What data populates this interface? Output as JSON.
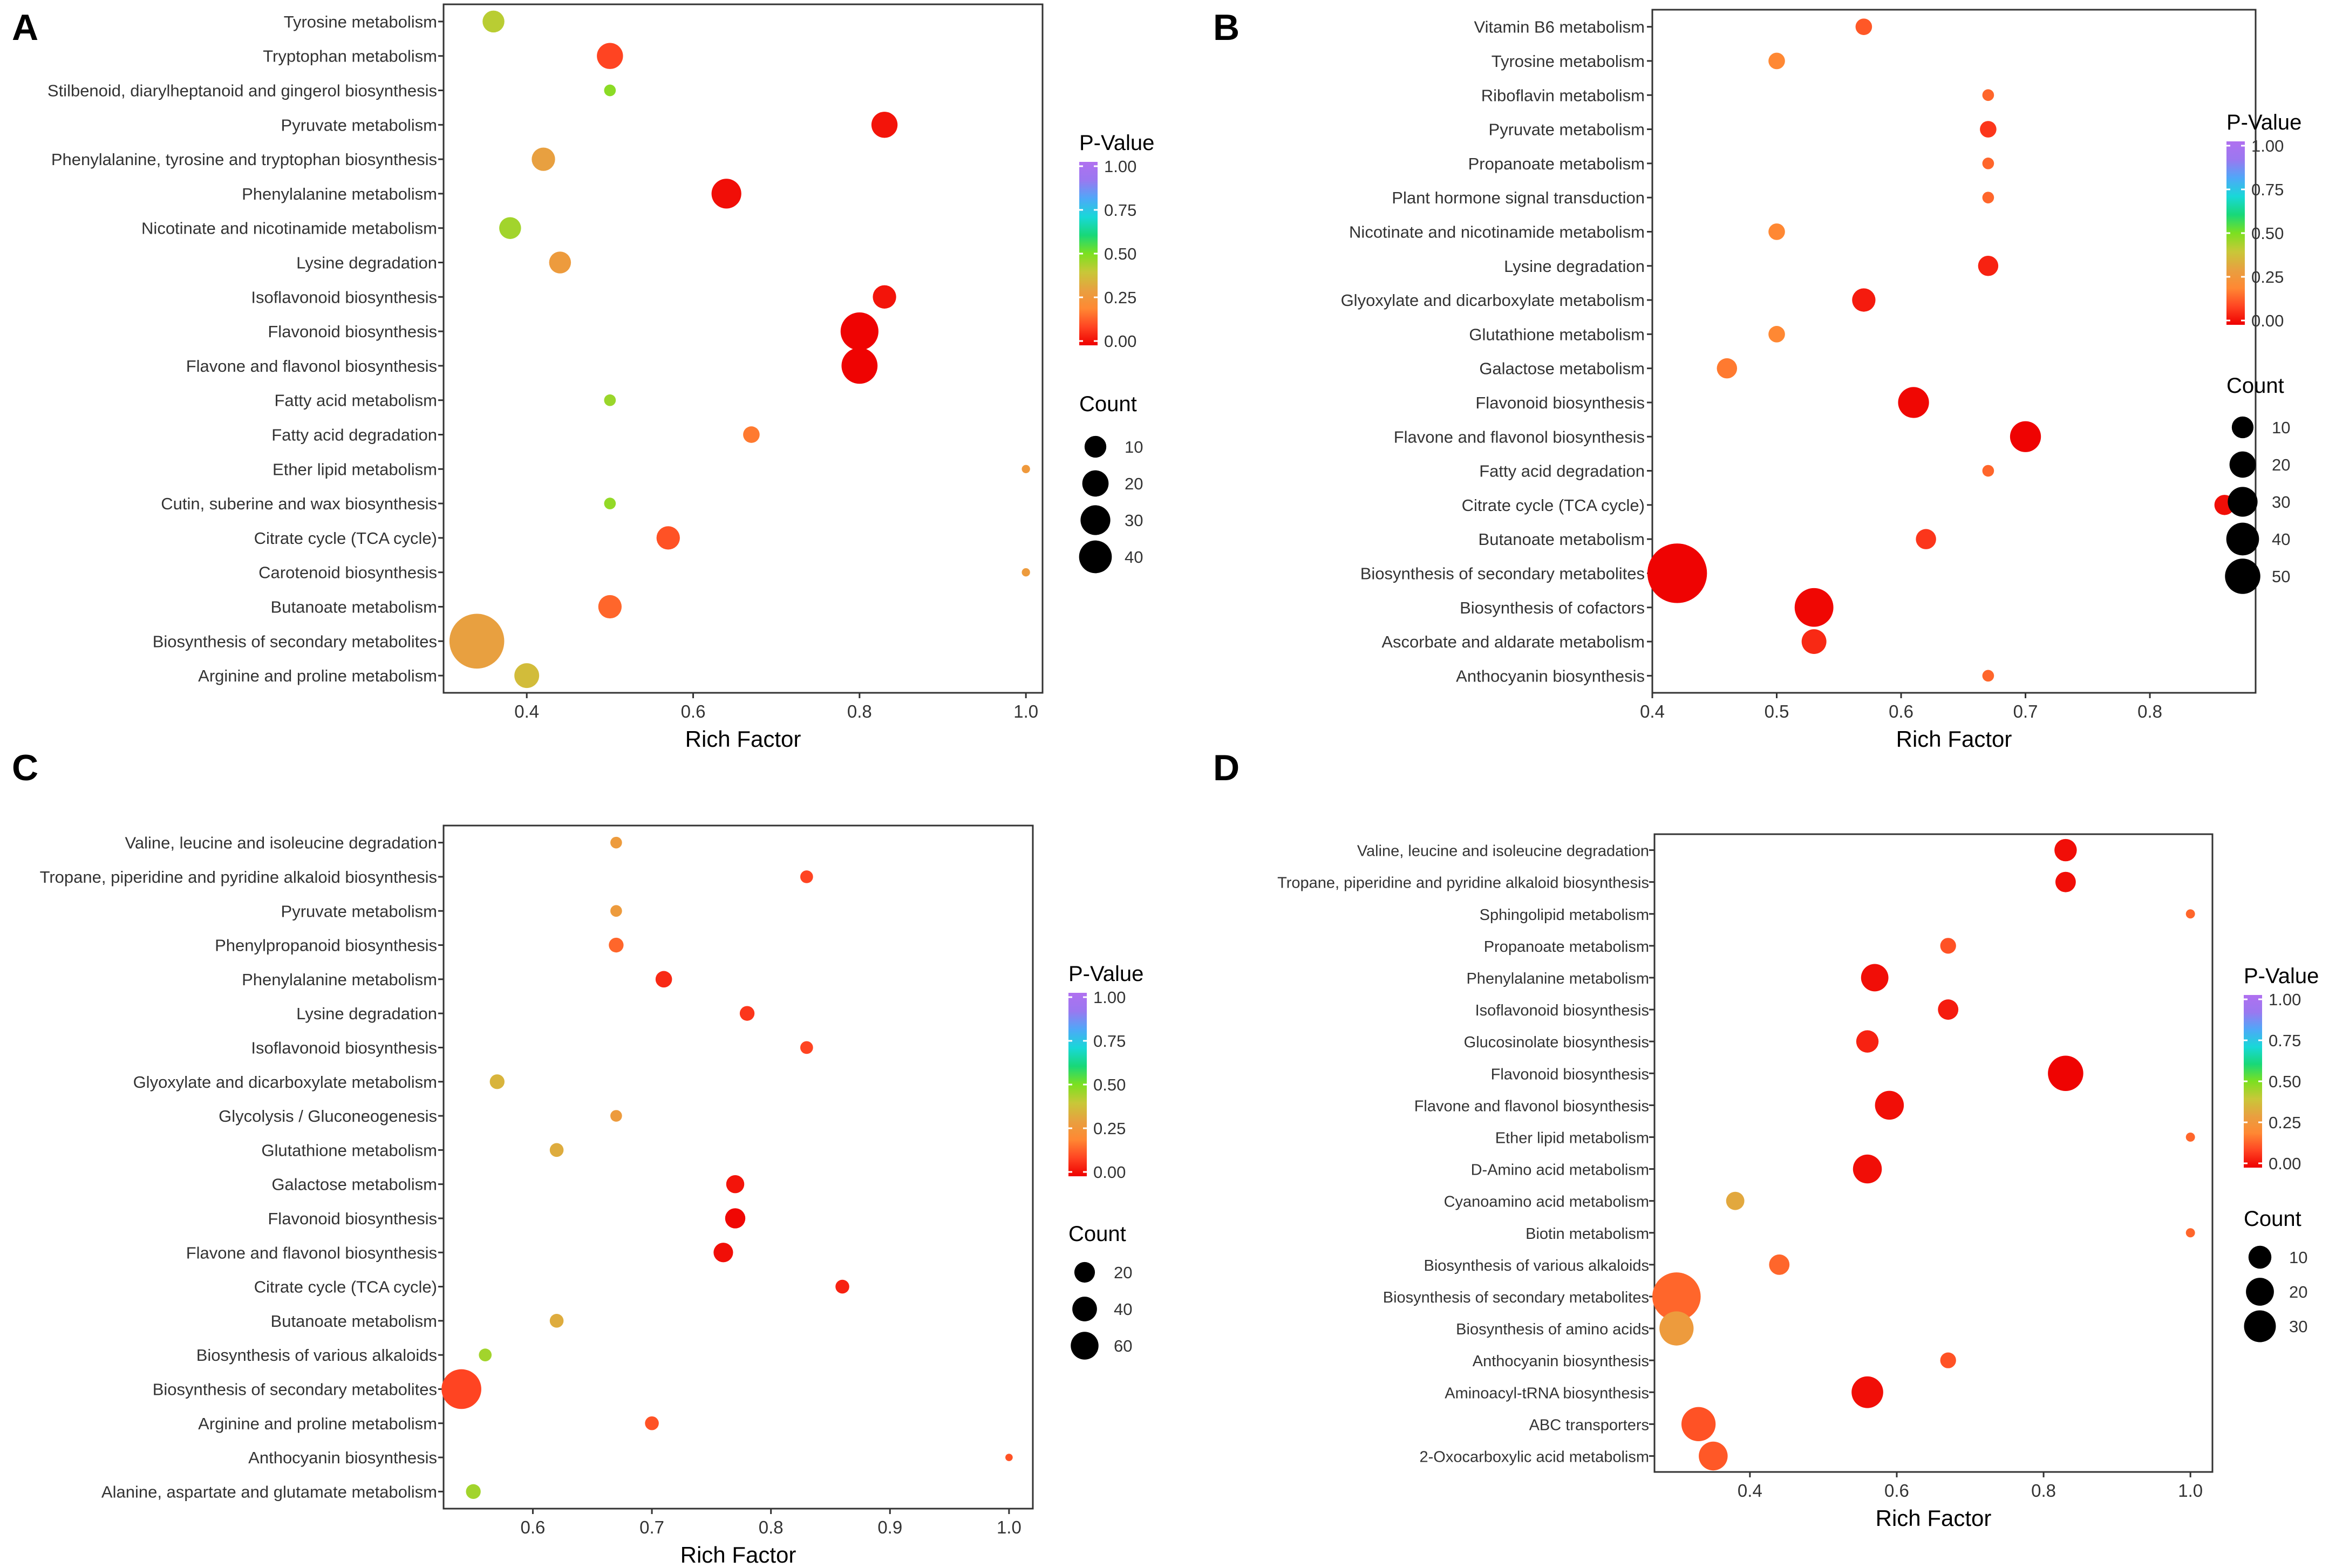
{
  "chart_data": [
    {
      "panel": "A",
      "type": "scatter",
      "xlabel": "Rich Factor",
      "xlim": [
        0.3,
        1.02
      ],
      "xticks": [
        "0.4",
        "0.6",
        "0.8",
        "1.0"
      ],
      "xtick_values": [
        0.4,
        0.6,
        0.8,
        1.0
      ],
      "legend_color_title": "P-Value",
      "color_ticks": [
        "1.00",
        "0.75",
        "0.50",
        "0.25",
        "0.00"
      ],
      "legend_size_title": "Count",
      "size_ticks": [
        "10",
        "20",
        "30",
        "40"
      ],
      "size_values": [
        10,
        20,
        30,
        40
      ],
      "points": [
        {
          "pathway": "Tyrosine metabolism",
          "rich_factor": 0.36,
          "p_value": 0.42,
          "count": 7
        },
        {
          "pathway": "Tryptophan metabolism",
          "rich_factor": 0.5,
          "p_value": 0.1,
          "count": 10
        },
        {
          "pathway": "Stilbenoid, diarylheptanoid and gingerol biosynthesis",
          "rich_factor": 0.5,
          "p_value": 0.48,
          "count": 2
        },
        {
          "pathway": "Pyruvate metabolism",
          "rich_factor": 0.83,
          "p_value": 0.03,
          "count": 10
        },
        {
          "pathway": "Phenylalanine, tyrosine and tryptophan biosynthesis",
          "rich_factor": 0.42,
          "p_value": 0.3,
          "count": 8
        },
        {
          "pathway": "Phenylalanine metabolism",
          "rich_factor": 0.64,
          "p_value": 0.02,
          "count": 13
        },
        {
          "pathway": "Nicotinate and nicotinamide metabolism",
          "rich_factor": 0.38,
          "p_value": 0.45,
          "count": 7
        },
        {
          "pathway": "Lysine degradation",
          "rich_factor": 0.44,
          "p_value": 0.28,
          "count": 7
        },
        {
          "pathway": "Isoflavonoid biosynthesis",
          "rich_factor": 0.83,
          "p_value": 0.03,
          "count": 8
        },
        {
          "pathway": "Flavonoid biosynthesis",
          "rich_factor": 0.8,
          "p_value": 0.005,
          "count": 21
        },
        {
          "pathway": "Flavone and flavonol biosynthesis",
          "rich_factor": 0.8,
          "p_value": 0.005,
          "count": 19
        },
        {
          "pathway": "Fatty acid metabolism",
          "rich_factor": 0.5,
          "p_value": 0.46,
          "count": 2
        },
        {
          "pathway": "Fatty acid degradation",
          "rich_factor": 0.67,
          "p_value": 0.18,
          "count": 4
        },
        {
          "pathway": "Ether lipid metabolism",
          "rich_factor": 1.0,
          "p_value": 0.27,
          "count": 1
        },
        {
          "pathway": "Cutin, suberine and wax biosynthesis",
          "rich_factor": 0.5,
          "p_value": 0.47,
          "count": 2
        },
        {
          "pathway": "Citrate cycle (TCA cycle)",
          "rich_factor": 0.57,
          "p_value": 0.12,
          "count": 8
        },
        {
          "pathway": "Carotenoid biosynthesis",
          "rich_factor": 1.0,
          "p_value": 0.28,
          "count": 1
        },
        {
          "pathway": "Butanoate metabolism",
          "rich_factor": 0.5,
          "p_value": 0.15,
          "count": 8
        },
        {
          "pathway": "Biosynthesis of secondary metabolites",
          "rich_factor": 0.34,
          "p_value": 0.3,
          "count": 44
        },
        {
          "pathway": "Arginine and proline metabolism",
          "rich_factor": 0.4,
          "p_value": 0.37,
          "count": 9
        }
      ]
    },
    {
      "panel": "B",
      "type": "scatter",
      "xlabel": "Rich Factor",
      "xlim": [
        0.4,
        0.885
      ],
      "xticks": [
        "0.4",
        "0.5",
        "0.6",
        "0.7",
        "0.8"
      ],
      "xtick_values": [
        0.4,
        0.5,
        0.6,
        0.7,
        0.8
      ],
      "legend_color_title": "P-Value",
      "color_ticks": [
        "1.00",
        "0.75",
        "0.50",
        "0.25",
        "0.00"
      ],
      "legend_size_title": "Count",
      "size_ticks": [
        "10",
        "20",
        "30",
        "40",
        "50"
      ],
      "size_values": [
        10,
        20,
        30,
        40,
        50
      ],
      "points": [
        {
          "pathway": "Vitamin B6 metabolism",
          "rich_factor": 0.57,
          "p_value": 0.13,
          "count": 4
        },
        {
          "pathway": "Tyrosine metabolism",
          "rich_factor": 0.5,
          "p_value": 0.2,
          "count": 4
        },
        {
          "pathway": "Riboflavin metabolism",
          "rich_factor": 0.67,
          "p_value": 0.15,
          "count": 2
        },
        {
          "pathway": "Pyruvate metabolism",
          "rich_factor": 0.67,
          "p_value": 0.08,
          "count": 4
        },
        {
          "pathway": "Propanoate metabolism",
          "rich_factor": 0.67,
          "p_value": 0.15,
          "count": 2
        },
        {
          "pathway": "Plant hormone signal transduction",
          "rich_factor": 0.67,
          "p_value": 0.15,
          "count": 2
        },
        {
          "pathway": "Nicotinate and nicotinamide metabolism",
          "rich_factor": 0.5,
          "p_value": 0.2,
          "count": 4
        },
        {
          "pathway": "Lysine degradation",
          "rich_factor": 0.67,
          "p_value": 0.05,
          "count": 6
        },
        {
          "pathway": "Glyoxylate and dicarboxylate metabolism",
          "rich_factor": 0.57,
          "p_value": 0.04,
          "count": 8
        },
        {
          "pathway": "Glutathione metabolism",
          "rich_factor": 0.5,
          "p_value": 0.2,
          "count": 4
        },
        {
          "pathway": "Galactose metabolism",
          "rich_factor": 0.46,
          "p_value": 0.18,
          "count": 6
        },
        {
          "pathway": "Flavonoid biosynthesis",
          "rich_factor": 0.61,
          "p_value": 0.01,
          "count": 14
        },
        {
          "pathway": "Flavone and flavonol biosynthesis",
          "rich_factor": 0.7,
          "p_value": 0.005,
          "count": 14
        },
        {
          "pathway": "Fatty acid degradation",
          "rich_factor": 0.67,
          "p_value": 0.15,
          "count": 2
        },
        {
          "pathway": "Citrate cycle (TCA cycle)",
          "rich_factor": 0.86,
          "p_value": 0.02,
          "count": 6
        },
        {
          "pathway": "Butanoate metabolism",
          "rich_factor": 0.62,
          "p_value": 0.08,
          "count": 6
        },
        {
          "pathway": "Biosynthesis of secondary metabolites",
          "rich_factor": 0.42,
          "p_value": 0.005,
          "count": 52
        },
        {
          "pathway": "Biosynthesis of cofactors",
          "rich_factor": 0.53,
          "p_value": 0.01,
          "count": 22
        },
        {
          "pathway": "Ascorbate and aldarate metabolism",
          "rich_factor": 0.53,
          "p_value": 0.06,
          "count": 9
        },
        {
          "pathway": "Anthocyanin biosynthesis",
          "rich_factor": 0.67,
          "p_value": 0.15,
          "count": 2
        }
      ]
    },
    {
      "panel": "C",
      "type": "scatter",
      "xlabel": "Rich Factor",
      "xlim": [
        0.525,
        1.02
      ],
      "xticks": [
        "0.6",
        "0.7",
        "0.8",
        "0.9",
        "1.0"
      ],
      "xtick_values": [
        0.6,
        0.7,
        0.8,
        0.9,
        1.0
      ],
      "legend_color_title": "P-Value",
      "color_ticks": [
        "1.00",
        "0.75",
        "0.50",
        "0.25",
        "0.00"
      ],
      "legend_size_title": "Count",
      "size_ticks": [
        "20",
        "40",
        "60"
      ],
      "size_values": [
        20,
        40,
        60
      ],
      "points": [
        {
          "pathway": "Valine, leucine and isoleucine degradation",
          "rich_factor": 0.67,
          "p_value": 0.28,
          "count": 5
        },
        {
          "pathway": "Tropane, piperidine and pyridine alkaloid biosynthesis",
          "rich_factor": 0.83,
          "p_value": 0.1,
          "count": 6
        },
        {
          "pathway": "Pyruvate metabolism",
          "rich_factor": 0.67,
          "p_value": 0.28,
          "count": 5
        },
        {
          "pathway": "Phenylpropanoid biosynthesis",
          "rich_factor": 0.67,
          "p_value": 0.15,
          "count": 8
        },
        {
          "pathway": "Phenylalanine metabolism",
          "rich_factor": 0.71,
          "p_value": 0.06,
          "count": 10
        },
        {
          "pathway": "Lysine degradation",
          "rich_factor": 0.78,
          "p_value": 0.08,
          "count": 8
        },
        {
          "pathway": "Isoflavonoid biosynthesis",
          "rich_factor": 0.83,
          "p_value": 0.1,
          "count": 6
        },
        {
          "pathway": "Glyoxylate and dicarboxylate metabolism",
          "rich_factor": 0.57,
          "p_value": 0.35,
          "count": 8
        },
        {
          "pathway": "Glycolysis / Gluconeogenesis",
          "rich_factor": 0.67,
          "p_value": 0.28,
          "count": 5
        },
        {
          "pathway": "Glutathione metabolism",
          "rich_factor": 0.62,
          "p_value": 0.33,
          "count": 7
        },
        {
          "pathway": "Galactose metabolism",
          "rich_factor": 0.77,
          "p_value": 0.03,
          "count": 12
        },
        {
          "pathway": "Flavonoid biosynthesis",
          "rich_factor": 0.77,
          "p_value": 0.01,
          "count": 15
        },
        {
          "pathway": "Flavone and flavonol biosynthesis",
          "rich_factor": 0.76,
          "p_value": 0.02,
          "count": 14
        },
        {
          "pathway": "Citrate cycle (TCA cycle)",
          "rich_factor": 0.86,
          "p_value": 0.05,
          "count": 7
        },
        {
          "pathway": "Butanoate metabolism",
          "rich_factor": 0.62,
          "p_value": 0.33,
          "count": 7
        },
        {
          "pathway": "Biosynthesis of various alkaloids",
          "rich_factor": 0.56,
          "p_value": 0.45,
          "count": 6
        },
        {
          "pathway": "Biosynthesis of secondary metabolites",
          "rich_factor": 0.54,
          "p_value": 0.1,
          "count": 58
        },
        {
          "pathway": "Arginine and proline metabolism",
          "rich_factor": 0.7,
          "p_value": 0.12,
          "count": 7
        },
        {
          "pathway": "Anthocyanin biosynthesis",
          "rich_factor": 1.0,
          "p_value": 0.12,
          "count": 2
        },
        {
          "pathway": "Alanine, aspartate and glutamate metabolism",
          "rich_factor": 0.55,
          "p_value": 0.45,
          "count": 8
        }
      ]
    },
    {
      "panel": "D",
      "type": "scatter",
      "xlabel": "Rich Factor",
      "xlim": [
        0.27,
        1.03
      ],
      "xticks": [
        "0.4",
        "0.6",
        "0.8",
        "1.0"
      ],
      "xtick_values": [
        0.4,
        0.6,
        0.8,
        1.0
      ],
      "legend_color_title": "P-Value",
      "color_ticks": [
        "1.00",
        "0.75",
        "0.50",
        "0.25",
        "0.00"
      ],
      "legend_size_title": "Count",
      "size_ticks": [
        "10",
        "20",
        "30"
      ],
      "size_values": [
        10,
        20,
        30
      ],
      "points": [
        {
          "pathway": "Valine, leucine and isoleucine degradation",
          "rich_factor": 0.83,
          "p_value": 0.02,
          "count": 6
        },
        {
          "pathway": "Tropane, piperidine and pyridine alkaloid biosynthesis",
          "rich_factor": 0.83,
          "p_value": 0.02,
          "count": 5
        },
        {
          "pathway": "Sphingolipid metabolism",
          "rich_factor": 1.0,
          "p_value": 0.15,
          "count": 1
        },
        {
          "pathway": "Propanoate metabolism",
          "rich_factor": 0.67,
          "p_value": 0.12,
          "count": 3
        },
        {
          "pathway": "Phenylalanine metabolism",
          "rich_factor": 0.57,
          "p_value": 0.02,
          "count": 9
        },
        {
          "pathway": "Isoflavonoid biosynthesis",
          "rich_factor": 0.67,
          "p_value": 0.04,
          "count": 5
        },
        {
          "pathway": "Glucosinolate biosynthesis",
          "rich_factor": 0.56,
          "p_value": 0.05,
          "count": 6
        },
        {
          "pathway": "Flavonoid biosynthesis",
          "rich_factor": 0.83,
          "p_value": 0.005,
          "count": 15
        },
        {
          "pathway": "Flavone and flavonol biosynthesis",
          "rich_factor": 0.59,
          "p_value": 0.02,
          "count": 10
        },
        {
          "pathway": "Ether lipid metabolism",
          "rich_factor": 1.0,
          "p_value": 0.15,
          "count": 1
        },
        {
          "pathway": "D-Amino acid metabolism",
          "rich_factor": 0.56,
          "p_value": 0.02,
          "count": 10
        },
        {
          "pathway": "Cyanoamino acid metabolism",
          "rich_factor": 0.38,
          "p_value": 0.32,
          "count": 4
        },
        {
          "pathway": "Biotin metabolism",
          "rich_factor": 1.0,
          "p_value": 0.15,
          "count": 1
        },
        {
          "pathway": "Biosynthesis of various alkaloids",
          "rich_factor": 0.44,
          "p_value": 0.15,
          "count": 5
        },
        {
          "pathway": "Biosynthesis of secondary metabolites",
          "rich_factor": 0.3,
          "p_value": 0.15,
          "count": 28
        },
        {
          "pathway": "Biosynthesis of amino acids",
          "rich_factor": 0.3,
          "p_value": 0.28,
          "count": 14
        },
        {
          "pathway": "Anthocyanin biosynthesis",
          "rich_factor": 0.67,
          "p_value": 0.12,
          "count": 3
        },
        {
          "pathway": "Aminoacyl-tRNA biosynthesis",
          "rich_factor": 0.56,
          "p_value": 0.02,
          "count": 12
        },
        {
          "pathway": "ABC transporters",
          "rich_factor": 0.33,
          "p_value": 0.12,
          "count": 14
        },
        {
          "pathway": "2-Oxocarboxylic acid metabolism",
          "rich_factor": 0.35,
          "p_value": 0.13,
          "count": 10
        }
      ]
    }
  ],
  "panel_letters": [
    "A",
    "B",
    "C",
    "D"
  ],
  "colors": {
    "gradient_stops": [
      "#ee0000",
      "#ff4422",
      "#ff8833",
      "#e8a040",
      "#c8c838",
      "#7ce020",
      "#18d878",
      "#18d8d8",
      "#4ea8f8",
      "#9a78f0",
      "#b070f0"
    ],
    "axis": "#333333",
    "text": "#333333",
    "size_legend_dot": "#000000"
  }
}
